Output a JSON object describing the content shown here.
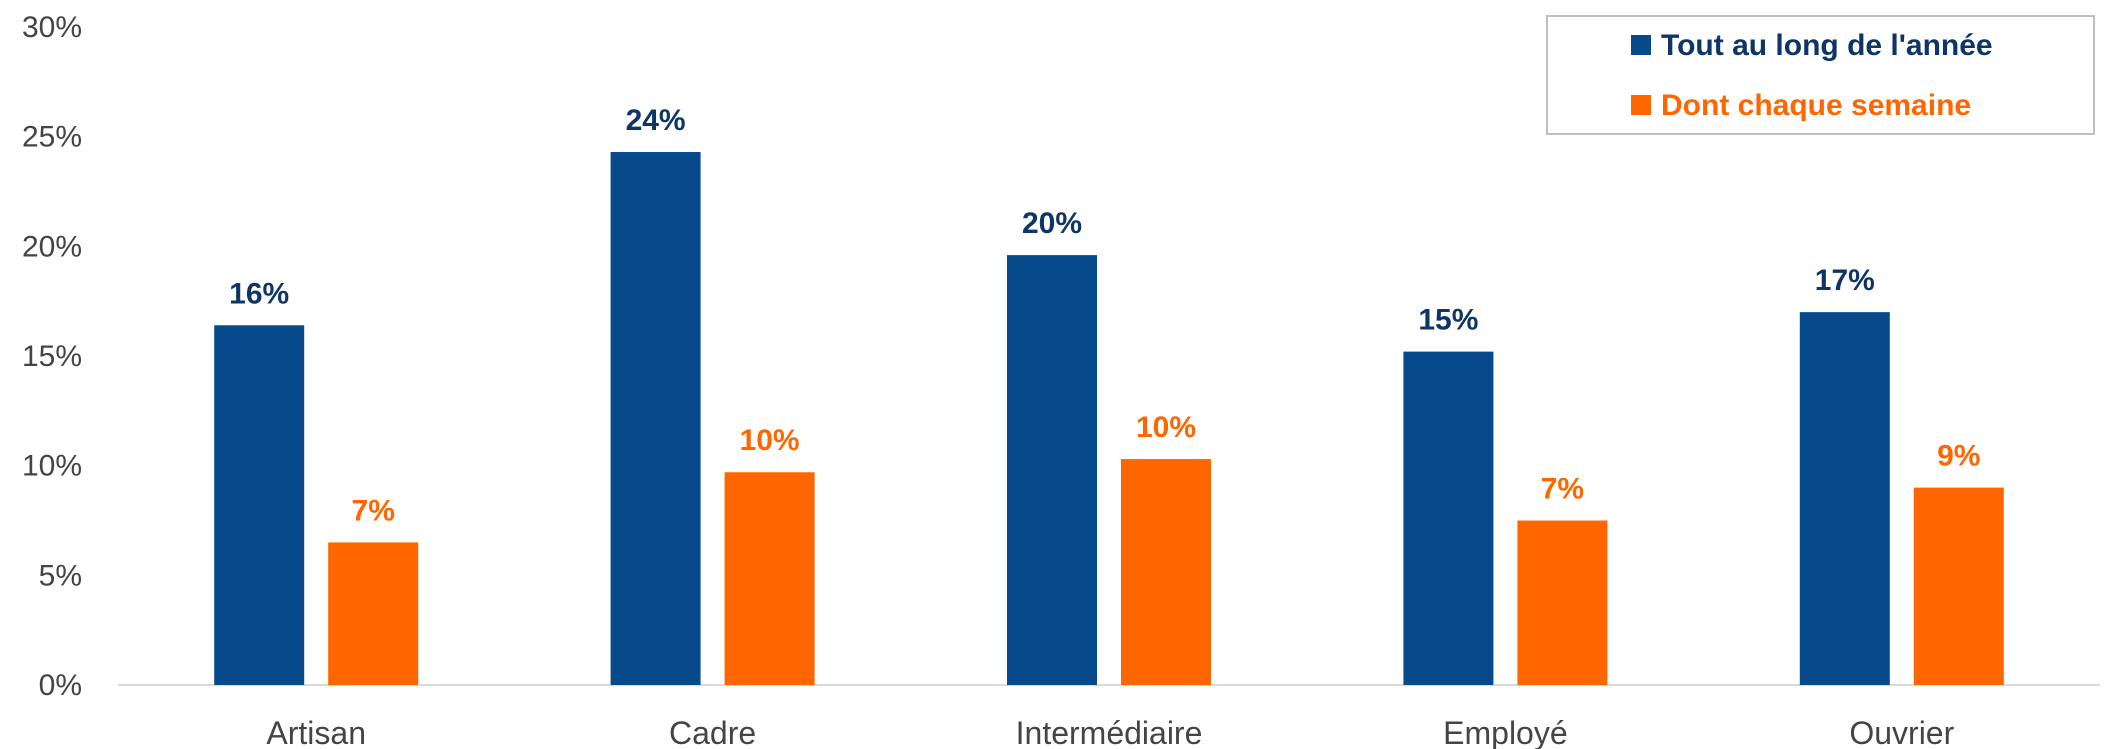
{
  "chart_data": {
    "type": "bar",
    "categories": [
      "Artisan",
      "Cadre",
      "Intermédiaire",
      "Employé",
      "Ouvrier"
    ],
    "series": [
      {
        "name": "Tout au long de l'année",
        "color": "#064a8c",
        "values": [
          16.4,
          24.3,
          19.6,
          15.2,
          17.0
        ],
        "labels": [
          "16%",
          "24%",
          "20%",
          "15%",
          "17%"
        ]
      },
      {
        "name": "Dont chaque semaine",
        "color": "#ff6600",
        "values": [
          6.5,
          9.7,
          10.3,
          7.5,
          9.0
        ],
        "labels": [
          "7%",
          "10%",
          "10%",
          "7%",
          "9%"
        ]
      }
    ],
    "ylim": [
      0,
      30
    ],
    "yticks": [
      0,
      5,
      10,
      15,
      20,
      25,
      30
    ],
    "ytick_labels": [
      "0%",
      "5%",
      "10%",
      "15%",
      "20%",
      "25%",
      "30%"
    ],
    "title": "",
    "xlabel": "",
    "ylabel": "",
    "legend_position": "top-right",
    "grid": false,
    "label_color_series_0": "#0d3566"
  }
}
